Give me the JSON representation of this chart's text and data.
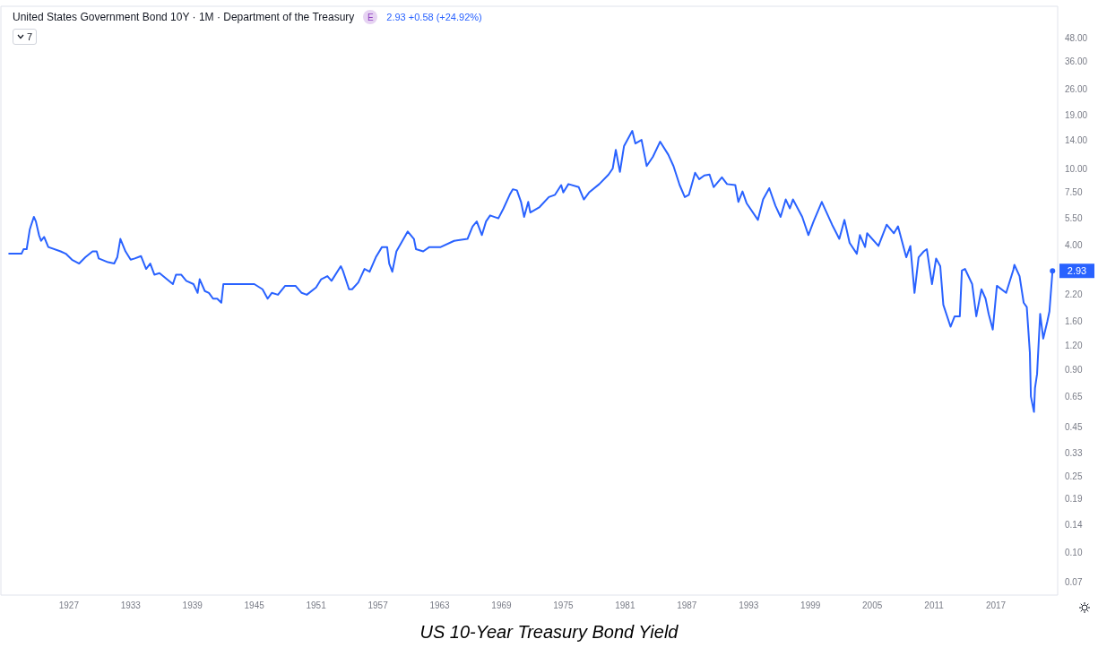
{
  "chart_data": {
    "type": "line",
    "title": "US 10-Year Treasury Bond Yield",
    "subtitle": "United States Government Bond 10Y · 1M · Department of the Treasury",
    "annotations": [
      "E",
      "2.93 +0.58 (+24.92%)",
      "7",
      {
        "text": "2.93",
        "x": 2022.5,
        "y": 2.93
      }
    ],
    "x": [
      1921.2,
      1922.4,
      1922.6,
      1922.9,
      1923.2,
      1923.3,
      1923.6,
      1923.8,
      1924.1,
      1924.3,
      1924.6,
      1925.0,
      1926.2,
      1926.7,
      1927.3,
      1928.0,
      1928.6,
      1929.3,
      1929.7,
      1929.9,
      1930.8,
      1931.4,
      1931.7,
      1932.0,
      1932.5,
      1933.0,
      1933.4,
      1934.0,
      1934.5,
      1934.9,
      1935.3,
      1935.8,
      1937.1,
      1937.4,
      1937.9,
      1938.4,
      1939.1,
      1939.5,
      1939.7,
      1940.2,
      1940.6,
      1941.0,
      1941.4,
      1941.8,
      1942.0,
      1943.6,
      1945.0,
      1945.8,
      1946.3,
      1946.7,
      1947.3,
      1948.0,
      1949.0,
      1949.6,
      1950.1,
      1951.0,
      1951.5,
      1952.1,
      1952.5,
      1953.4,
      1953.6,
      1954.2,
      1954.5,
      1955.1,
      1955.7,
      1956.2,
      1956.8,
      1957.4,
      1957.9,
      1958.1,
      1958.4,
      1958.8,
      1959.9,
      1960.5,
      1960.7,
      1961.4,
      1962.0,
      1963.1,
      1964.4,
      1965.7,
      1966.2,
      1966.6,
      1967.1,
      1967.5,
      1967.9,
      1968.7,
      1969.2,
      1969.8,
      1970.1,
      1970.5,
      1970.9,
      1971.2,
      1971.6,
      1971.8,
      1972.7,
      1973.6,
      1974.2,
      1974.8,
      1975.0,
      1975.5,
      1976.5,
      1977.0,
      1977.5,
      1978.5,
      1979.4,
      1979.8,
      1980.1,
      1980.5,
      1980.9,
      1981.7,
      1982.0,
      1982.6,
      1983.1,
      1983.7,
      1984.4,
      1985.2,
      1985.7,
      1986.3,
      1986.8,
      1987.2,
      1987.8,
      1988.2,
      1988.7,
      1989.2,
      1989.6,
      1990.4,
      1990.9,
      1991.7,
      1992.0,
      1992.4,
      1992.8,
      1993.9,
      1994.4,
      1995.0,
      1995.6,
      1996.1,
      1996.6,
      1997.0,
      1997.3,
      1998.2,
      1998.8,
      1999.3,
      2000.1,
      2001.1,
      2001.8,
      2002.3,
      2002.8,
      2003.5,
      2003.8,
      2004.3,
      2004.5,
      2005.6,
      2006.4,
      2007.1,
      2007.5,
      2008.3,
      2008.7,
      2009.1,
      2009.5,
      2010.0,
      2010.3,
      2010.8,
      2011.2,
      2011.6,
      2011.9,
      2012.6,
      2013.0,
      2013.5,
      2013.7,
      2014.0,
      2014.7,
      2015.1,
      2015.6,
      2016.0,
      2016.3,
      2016.7,
      2017.1,
      2018.0,
      2018.7,
      2018.8,
      2019.3,
      2019.7,
      2020.0,
      2020.3,
      2020.4,
      2020.7,
      2020.8,
      2021.0,
      2021.3,
      2021.6,
      2022.0,
      2022.2,
      2022.5
    ],
    "series": [
      {
        "color": "#2962ff",
        "values": [
          3.6,
          3.6,
          3.8,
          3.8,
          4.8,
          5.0,
          5.6,
          5.3,
          4.5,
          4.2,
          4.4,
          3.9,
          3.7,
          3.6,
          3.35,
          3.2,
          3.45,
          3.7,
          3.7,
          3.4,
          3.25,
          3.2,
          3.45,
          4.3,
          3.7,
          3.35,
          3.4,
          3.5,
          3.0,
          3.2,
          2.8,
          2.85,
          2.5,
          2.8,
          2.8,
          2.6,
          2.5,
          2.25,
          2.65,
          2.3,
          2.25,
          2.1,
          2.1,
          2.0,
          2.5,
          2.5,
          2.5,
          2.35,
          2.1,
          2.25,
          2.2,
          2.45,
          2.45,
          2.25,
          2.2,
          2.4,
          2.65,
          2.75,
          2.6,
          3.1,
          2.94,
          2.35,
          2.35,
          2.55,
          3.0,
          2.9,
          3.45,
          3.9,
          3.9,
          3.2,
          2.9,
          3.7,
          4.7,
          4.3,
          3.8,
          3.7,
          3.9,
          3.9,
          4.2,
          4.3,
          5.0,
          5.3,
          4.5,
          5.3,
          5.7,
          5.5,
          6.2,
          7.3,
          7.8,
          7.7,
          6.7,
          5.6,
          6.7,
          5.9,
          6.3,
          7.1,
          7.3,
          8.2,
          7.5,
          8.3,
          8.0,
          6.9,
          7.5,
          8.3,
          9.3,
          10.0,
          12.5,
          9.6,
          13.1,
          15.7,
          13.5,
          14.1,
          10.3,
          11.5,
          13.8,
          11.8,
          10.3,
          8.2,
          7.1,
          7.3,
          9.5,
          8.8,
          9.2,
          9.3,
          8.0,
          9.0,
          8.3,
          8.2,
          6.7,
          7.6,
          6.6,
          5.4,
          6.9,
          7.9,
          6.4,
          5.6,
          6.9,
          6.2,
          6.9,
          5.6,
          4.5,
          5.3,
          6.7,
          5.1,
          4.3,
          5.4,
          4.1,
          3.6,
          4.5,
          3.9,
          4.6,
          3.95,
          5.1,
          4.6,
          5.0,
          3.45,
          3.95,
          2.25,
          3.45,
          3.7,
          3.8,
          2.5,
          3.4,
          3.1,
          1.95,
          1.5,
          1.7,
          1.7,
          2.94,
          3.0,
          2.5,
          1.7,
          2.35,
          2.1,
          1.75,
          1.45,
          2.45,
          2.25,
          2.97,
          3.15,
          2.75,
          2.0,
          1.9,
          1.1,
          0.65,
          0.54,
          0.72,
          0.85,
          1.75,
          1.3,
          1.6,
          1.8,
          2.93
        ]
      }
    ],
    "xlim": [
      1920.4,
      2023
    ],
    "xticks": [
      1927,
      1933,
      1939,
      1945,
      1951,
      1957,
      1963,
      1969,
      1975,
      1981,
      1987,
      1993,
      1999,
      2005,
      2011,
      2017
    ],
    "ylim": [
      0.06,
      70
    ],
    "yticks": [
      {
        "value": 0.07,
        "label": "0.07"
      },
      {
        "value": 0.1,
        "label": "0.10"
      },
      {
        "value": 0.14,
        "label": "0.14"
      },
      {
        "value": 0.19,
        "label": "0.19"
      },
      {
        "value": 0.25,
        "label": "0.25"
      },
      {
        "value": 0.33,
        "label": "0.33"
      },
      {
        "value": 0.45,
        "label": "0.45"
      },
      {
        "value": 0.65,
        "label": "0.65"
      },
      {
        "value": 0.9,
        "label": "0.90"
      },
      {
        "value": 1.2,
        "label": "1.20"
      },
      {
        "value": 1.6,
        "label": "1.60"
      },
      {
        "value": 2.2,
        "label": "2.20"
      },
      {
        "value": 4,
        "label": "4.00"
      },
      {
        "value": 5.5,
        "label": "5.50"
      },
      {
        "value": 7.5,
        "label": "7.50"
      },
      {
        "value": 10,
        "label": "10.00"
      },
      {
        "value": 14,
        "label": "14.00"
      },
      {
        "value": 19,
        "label": "19.00"
      },
      {
        "value": 26,
        "label": "26.00"
      },
      {
        "value": 36,
        "label": "36.00"
      },
      {
        "value": 48,
        "label": "48.00"
      }
    ],
    "log": "y",
    "marker": "none",
    "line_style": "solid"
  }
}
